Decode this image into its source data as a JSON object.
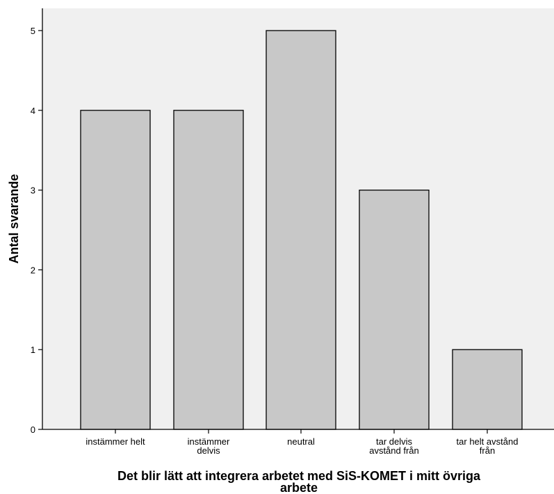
{
  "chart_data": {
    "type": "bar",
    "categories": [
      [
        "instämmer helt"
      ],
      [
        "instämmer",
        "delvis"
      ],
      [
        "neutral"
      ],
      [
        "tar delvis",
        "avstånd från"
      ],
      [
        "tar helt avstånd",
        "från"
      ]
    ],
    "values": [
      4,
      4,
      5,
      3,
      1
    ],
    "ylabel": "Antal svarande",
    "xlabel": [
      "Det blir lätt att integrera arbetet med SiS-KOMET i mitt övriga",
      "arbete"
    ],
    "ylim": [
      0,
      5.5
    ],
    "yticks": [
      0,
      1,
      2,
      3,
      4,
      5
    ],
    "grid": false,
    "legend": "none",
    "colors": {
      "plot_background": "#f0f0f0",
      "bar_fill": "#c8c8c8",
      "bar_stroke": "#000000"
    }
  }
}
